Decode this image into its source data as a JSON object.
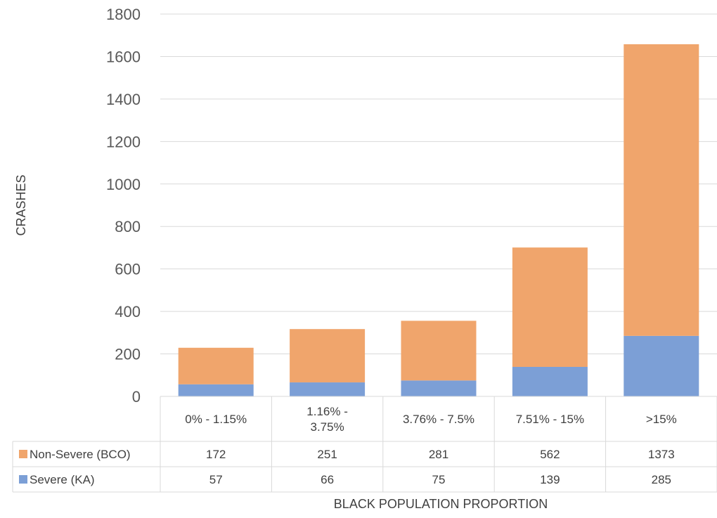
{
  "chart_data": {
    "type": "bar",
    "stacked": true,
    "categories": [
      "0% - 1.15%",
      "1.16% - 3.75%",
      "3.76% - 7.5%",
      "7.51% - 15%",
      ">15%"
    ],
    "category_lines": [
      [
        "0% - 1.15%"
      ],
      [
        "1.16% -",
        "3.75%"
      ],
      [
        "3.76% - 7.5%"
      ],
      [
        "7.51% - 15%"
      ],
      [
        ">15%"
      ]
    ],
    "series": [
      {
        "name": "Severe (KA)",
        "values": [
          57,
          66,
          75,
          139,
          285
        ],
        "color": "#7c9fd6"
      },
      {
        "name": "Non-Severe (BCO)",
        "values": [
          172,
          251,
          281,
          562,
          1373
        ],
        "color": "#f0a56c"
      }
    ],
    "table_labels": {
      "non_severe": "Non-Severe (BCO)",
      "severe": "Severe (KA)"
    },
    "table_values": {
      "non_severe": [
        "172",
        "251",
        "281",
        "562",
        "1373"
      ],
      "severe": [
        "57",
        "66",
        "75",
        "139",
        "285"
      ]
    },
    "ylabel": "CRASHES",
    "xlabel": "BLACK POPULATION PROPORTION",
    "ylim": [
      0,
      1800
    ],
    "yticks": [
      "0",
      "200",
      "400",
      "600",
      "800",
      "1000",
      "1200",
      "1400",
      "1600",
      "1800"
    ],
    "grid": true,
    "legend": "data-table"
  }
}
